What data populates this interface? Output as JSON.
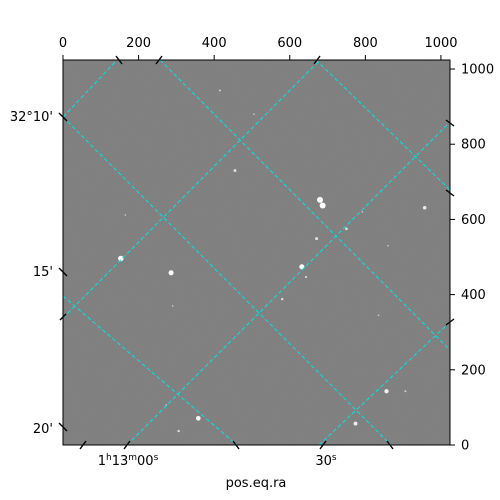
{
  "chart_data": {
    "type": "image",
    "xlabel": "pos.eq.ra",
    "pixel_axes": {
      "x": {
        "range": [
          0,
          1024
        ],
        "ticks": [
          0,
          200,
          400,
          600,
          800,
          1000
        ],
        "labels": [
          "0",
          "200",
          "400",
          "600",
          "800",
          "1000"
        ]
      },
      "y": {
        "range": [
          0,
          1024
        ],
        "ticks": [
          0,
          200,
          400,
          600,
          800,
          1000
        ],
        "labels": [
          "0",
          "200",
          "400",
          "600",
          "800",
          "1000"
        ]
      }
    },
    "world_axes": {
      "ra_ticks": [
        {
          "label_main": "1",
          "label_sup1": "h",
          "label_mid": "13",
          "label_sup2": "m",
          "label_end": "00",
          "label_sup3": "s"
        },
        {
          "label_main": "30",
          "label_sup1": "s"
        }
      ],
      "dec_ticks": [
        "32°10'",
        "15'",
        "20'"
      ]
    },
    "grid": true,
    "colors": {
      "background": "#7a7a7a",
      "grid": "#00e5e5",
      "frame": "#000000",
      "star": "#ffffff"
    },
    "stars": [
      {
        "x": 680,
        "y": 652,
        "brightness": 1.0
      },
      {
        "x": 687,
        "y": 637,
        "brightness": 1.0
      },
      {
        "x": 153,
        "y": 496,
        "brightness": 0.95
      },
      {
        "x": 632,
        "y": 474,
        "brightness": 0.9
      },
      {
        "x": 286,
        "y": 458,
        "brightness": 0.9
      },
      {
        "x": 358,
        "y": 71,
        "brightness": 0.85
      },
      {
        "x": 856,
        "y": 143,
        "brightness": 0.8
      },
      {
        "x": 774,
        "y": 57,
        "brightness": 0.75
      },
      {
        "x": 957,
        "y": 631,
        "brightness": 0.7
      },
      {
        "x": 455,
        "y": 730,
        "brightness": 0.6
      },
      {
        "x": 671,
        "y": 549,
        "brightness": 0.6
      },
      {
        "x": 750,
        "y": 575,
        "brightness": 0.55
      },
      {
        "x": 580,
        "y": 388,
        "brightness": 0.5
      },
      {
        "x": 643,
        "y": 447,
        "brightness": 0.45
      },
      {
        "x": 306,
        "y": 37,
        "brightness": 0.5
      },
      {
        "x": 415,
        "y": 943,
        "brightness": 0.4
      },
      {
        "x": 273,
        "y": 106,
        "brightness": 0.35
      },
      {
        "x": 906,
        "y": 143,
        "brightness": 0.4
      },
      {
        "x": 860,
        "y": 530,
        "brightness": 0.3
      },
      {
        "x": 165,
        "y": 612,
        "brightness": 0.3
      },
      {
        "x": 290,
        "y": 370,
        "brightness": 0.3
      },
      {
        "x": 792,
        "y": 620,
        "brightness": 0.3
      },
      {
        "x": 835,
        "y": 345,
        "brightness": 0.3
      },
      {
        "x": 505,
        "y": 880,
        "brightness": 0.3
      }
    ]
  }
}
